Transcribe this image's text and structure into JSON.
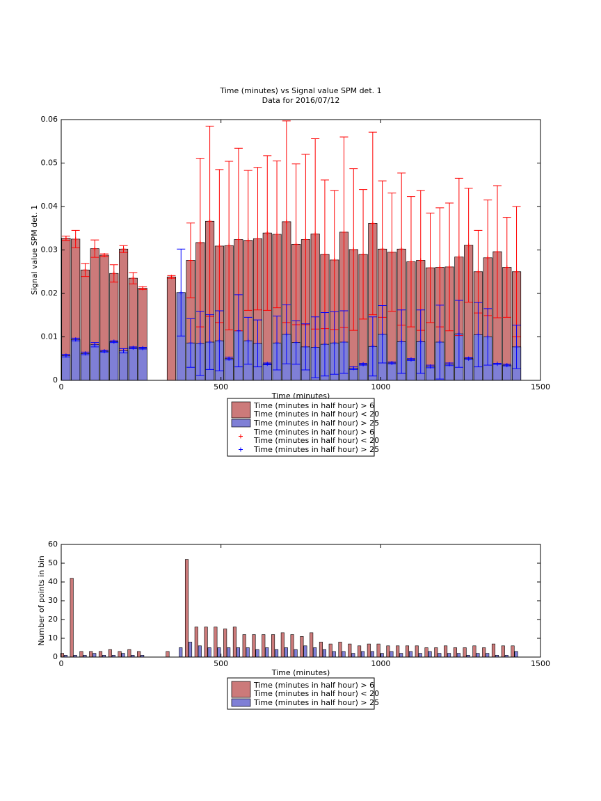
{
  "chart_data": [
    {
      "type": "errorbar_bar",
      "title": "Time (minutes) vs Signal value SPM det. 1",
      "subtitle": "Data for 2016/07/12",
      "xlabel": "Time (minutes)",
      "ylabel": "Signal value SPM det. 1",
      "xlim": [
        0,
        1500
      ],
      "xticks": [
        0,
        500,
        1000,
        1500
      ],
      "ylim": [
        0,
        0.06
      ],
      "yticks": [
        0,
        0.01,
        0.02,
        0.03,
        0.04,
        0.05,
        0.06
      ],
      "x": [
        15,
        45,
        75,
        105,
        135,
        165,
        195,
        225,
        255,
        285,
        315,
        345,
        375,
        405,
        435,
        465,
        495,
        525,
        555,
        585,
        615,
        645,
        675,
        705,
        735,
        765,
        795,
        825,
        855,
        885,
        915,
        945,
        975,
        1005,
        1035,
        1065,
        1095,
        1125,
        1155,
        1185,
        1215,
        1245,
        1275,
        1305,
        1335,
        1365,
        1395,
        1425
      ],
      "series": [
        {
          "name": [
            "Time (minutes in half hour) > 6",
            "Time (minutes in half hour) < 20"
          ],
          "color": "#cc7a7a",
          "error_color": "#ff0000",
          "values": [
            0.0327,
            0.0325,
            0.0254,
            0.0303,
            0.0288,
            0.0246,
            0.0302,
            0.0235,
            0.0212,
            null,
            null,
            0.0238,
            null,
            0.0276,
            0.0317,
            0.0366,
            0.0309,
            0.031,
            0.0324,
            0.0322,
            0.0326,
            0.0339,
            0.0336,
            0.0365,
            0.0313,
            0.0324,
            0.0337,
            0.029,
            0.0277,
            0.0341,
            0.0301,
            0.029,
            0.0361,
            0.0302,
            0.0295,
            0.0302,
            0.0273,
            0.0276,
            0.0259,
            0.026,
            0.0261,
            0.0284,
            0.0311,
            0.025,
            0.0282,
            0.0296,
            0.026,
            0.025
          ],
          "errors": [
            0.0005,
            0.002,
            0.0015,
            0.002,
            0.0003,
            0.002,
            0.0008,
            0.0013,
            0.0003,
            null,
            null,
            0.0003,
            null,
            0.0086,
            0.0194,
            0.0219,
            0.0176,
            0.0194,
            0.021,
            0.0161,
            0.0164,
            0.0178,
            0.0169,
            0.0232,
            0.0185,
            0.0196,
            0.0219,
            0.0171,
            0.016,
            0.0219,
            0.0186,
            0.0149,
            0.021,
            0.0157,
            0.0136,
            0.0175,
            0.015,
            0.0161,
            0.0126,
            0.0137,
            0.0147,
            0.0181,
            0.0131,
            0.0095,
            0.0133,
            0.0152,
            0.0115,
            0.015
          ]
        },
        {
          "name": [
            "Time (minutes in half hour) > 25"
          ],
          "color": "#7f7fd6",
          "error_color": "#0000ff",
          "values": [
            0.0057,
            0.0094,
            0.0062,
            0.0082,
            0.0067,
            0.0089,
            0.0068,
            0.0075,
            0.0074,
            null,
            null,
            null,
            0.0202,
            0.0086,
            0.0085,
            0.0088,
            0.0091,
            0.005,
            0.0114,
            0.0091,
            0.0085,
            0.0038,
            0.0086,
            0.0106,
            0.0087,
            0.0077,
            0.0076,
            0.0083,
            0.0086,
            0.0088,
            0.0028,
            0.0037,
            0.0078,
            0.0106,
            0.004,
            0.0089,
            0.0048,
            0.0089,
            0.0032,
            0.0088,
            0.0037,
            0.0107,
            0.005,
            0.0105,
            0.01,
            0.0038,
            0.0035,
            0.0077
          ],
          "errors": [
            0.0003,
            0.0003,
            0.0003,
            0.0005,
            0.0002,
            0.0002,
            0.0005,
            0.0002,
            0.0002,
            null,
            null,
            null,
            0.01,
            0.0056,
            0.0074,
            0.0063,
            0.0069,
            0.0003,
            0.0083,
            0.0054,
            0.0054,
            0.0002,
            0.0062,
            0.0068,
            0.005,
            0.0053,
            0.007,
            0.0073,
            0.0072,
            0.0072,
            0.0003,
            0.0002,
            0.0068,
            0.0066,
            0.0002,
            0.0073,
            0.0002,
            0.0073,
            0.0003,
            0.0085,
            0.0003,
            0.0077,
            0.0002,
            0.0074,
            0.0065,
            0.0001,
            0.0002,
            0.005
          ]
        }
      ]
    },
    {
      "type": "grouped_bar",
      "xlabel": "Time (minutes)",
      "ylabel": "Number of points in bin",
      "xlim": [
        0,
        1500
      ],
      "xticks": [
        0,
        500,
        1000,
        1500
      ],
      "ylim": [
        0,
        60
      ],
      "yticks": [
        0,
        10,
        20,
        30,
        40,
        50,
        60
      ],
      "x": [
        15,
        45,
        75,
        105,
        135,
        165,
        195,
        225,
        255,
        285,
        315,
        345,
        375,
        405,
        435,
        465,
        495,
        525,
        555,
        585,
        615,
        645,
        675,
        705,
        735,
        765,
        795,
        825,
        855,
        885,
        915,
        945,
        975,
        1005,
        1035,
        1065,
        1095,
        1125,
        1155,
        1185,
        1215,
        1245,
        1275,
        1305,
        1335,
        1365,
        1395,
        1425
      ],
      "series": [
        {
          "name": [
            "Time (minutes in half hour) > 6",
            "Time (minutes in half hour) < 20"
          ],
          "color": "#cc7a7a",
          "values": [
            2,
            42,
            3,
            3,
            3,
            4,
            3,
            4,
            3,
            0,
            0,
            3,
            0,
            52,
            16,
            16,
            16,
            15,
            16,
            12,
            12,
            12,
            12,
            13,
            12,
            11,
            13,
            8,
            7,
            8,
            7,
            6,
            7,
            7,
            6,
            6,
            6,
            6,
            5,
            5,
            6,
            5,
            5,
            6,
            5,
            7,
            6,
            6
          ]
        },
        {
          "name": [
            "Time (minutes in half hour) > 25"
          ],
          "color": "#7f7fd6",
          "values": [
            1,
            1,
            1,
            2,
            1,
            1,
            2,
            1,
            1,
            0,
            0,
            0,
            5,
            8,
            6,
            5,
            5,
            5,
            5,
            5,
            4,
            5,
            4,
            5,
            4,
            6,
            5,
            4,
            3,
            3,
            2,
            3,
            3,
            2,
            3,
            2,
            3,
            2,
            3,
            2,
            2,
            2,
            1,
            2,
            2,
            1,
            1,
            3
          ]
        }
      ]
    }
  ]
}
